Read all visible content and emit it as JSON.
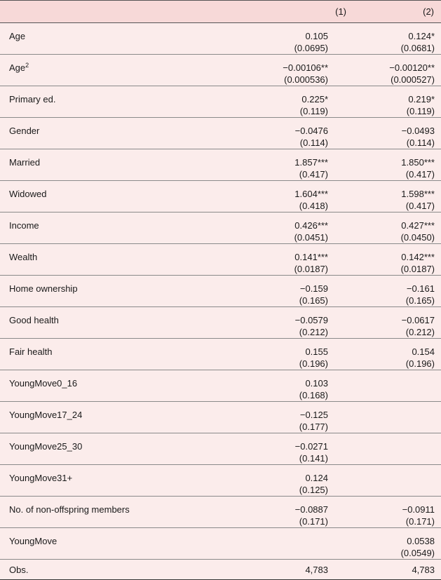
{
  "columns": [
    "",
    "(1)",
    "(2)"
  ],
  "rows": [
    {
      "label": "Age",
      "m1": {
        "est": "0.105",
        "se": "(0.0695)"
      },
      "m2": {
        "est": "0.124*",
        "se": "(0.0681)"
      }
    },
    {
      "label": "Age",
      "sup": "2",
      "m1": {
        "est": "−0.00106**",
        "se": "(0.000536)"
      },
      "m2": {
        "est": "−0.00120**",
        "se": "(0.000527)"
      }
    },
    {
      "label": "Primary ed.",
      "m1": {
        "est": "0.225*",
        "se": "(0.119)"
      },
      "m2": {
        "est": "0.219*",
        "se": "(0.119)"
      }
    },
    {
      "label": "Gender",
      "m1": {
        "est": "−0.0476",
        "se": "(0.114)"
      },
      "m2": {
        "est": "−0.0493",
        "se": "(0.114)"
      }
    },
    {
      "label": "Married",
      "m1": {
        "est": "1.857***",
        "se": "(0.417)"
      },
      "m2": {
        "est": "1.850***",
        "se": "(0.417)"
      }
    },
    {
      "label": "Widowed",
      "m1": {
        "est": "1.604***",
        "se": "(0.418)"
      },
      "m2": {
        "est": "1.598***",
        "se": "(0.417)"
      }
    },
    {
      "label": "Income",
      "m1": {
        "est": "0.426***",
        "se": "(0.0451)"
      },
      "m2": {
        "est": "0.427***",
        "se": "(0.0450)"
      }
    },
    {
      "label": "Wealth",
      "m1": {
        "est": "0.141***",
        "se": "(0.0187)"
      },
      "m2": {
        "est": "0.142***",
        "se": "(0.0187)"
      }
    },
    {
      "label": "Home ownership",
      "m1": {
        "est": "−0.159",
        "se": "(0.165)"
      },
      "m2": {
        "est": "−0.161",
        "se": "(0.165)"
      }
    },
    {
      "label": "Good health",
      "m1": {
        "est": "−0.0579",
        "se": "(0.212)"
      },
      "m2": {
        "est": "−0.0617",
        "se": "(0.212)"
      }
    },
    {
      "label": "Fair health",
      "m1": {
        "est": "0.155",
        "se": "(0.196)"
      },
      "m2": {
        "est": "0.154",
        "se": "(0.196)"
      }
    },
    {
      "label": "YoungMove0_16",
      "m1": {
        "est": "0.103",
        "se": "(0.168)"
      },
      "m2": {
        "est": "",
        "se": ""
      }
    },
    {
      "label": "YoungMove17_24",
      "m1": {
        "est": "−0.125",
        "se": "(0.177)"
      },
      "m2": {
        "est": "",
        "se": ""
      }
    },
    {
      "label": "YoungMove25_30",
      "m1": {
        "est": "−0.0271",
        "se": "(0.141)"
      },
      "m2": {
        "est": "",
        "se": ""
      }
    },
    {
      "label": "YoungMove31+",
      "m1": {
        "est": "0.124",
        "se": "(0.125)"
      },
      "m2": {
        "est": "",
        "se": ""
      }
    },
    {
      "label": "No. of non-offspring members",
      "m1": {
        "est": "−0.0887",
        "se": "(0.171)"
      },
      "m2": {
        "est": "−0.0911",
        "se": "(0.171)"
      }
    },
    {
      "label": "YoungMove",
      "m1": {
        "est": "",
        "se": ""
      },
      "m2": {
        "est": "0.0538",
        "se": "(0.0549)"
      }
    }
  ],
  "obs": {
    "label": "Obs.",
    "m1": "4,783",
    "m2": "4,783"
  }
}
